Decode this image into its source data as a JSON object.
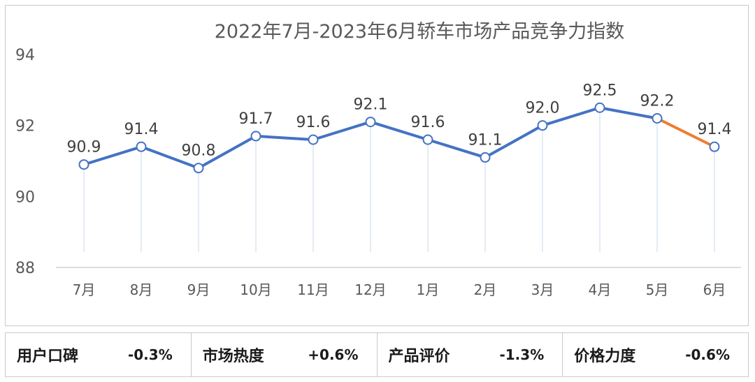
{
  "chart_data": {
    "type": "line",
    "title": "2022年7月-2023年6月轿车市场产品竞争力指数",
    "categories": [
      "7月",
      "8月",
      "9月",
      "10月",
      "11月",
      "12月",
      "1月",
      "2月",
      "3月",
      "4月",
      "5月",
      "6月"
    ],
    "values": [
      90.9,
      91.4,
      90.8,
      91.7,
      91.6,
      92.1,
      91.6,
      91.1,
      92.0,
      92.5,
      92.2,
      91.4
    ],
    "value_labels": [
      "90.9",
      "91.4",
      "90.8",
      "91.7",
      "91.6",
      "92.1",
      "91.6",
      "91.1",
      "92.0",
      "92.5",
      "92.2",
      "91.4"
    ],
    "yticks": [
      "94",
      "92",
      "90",
      "88"
    ],
    "ylim": [
      88,
      94
    ],
    "grid": false,
    "colors": {
      "line": "#4472c4",
      "last_segment": "#ed7d31",
      "marker_fill": "#ffffff",
      "drop_line": "#dce6f2"
    }
  },
  "metrics": [
    {
      "name": "用户口碑",
      "value": "-0.3%"
    },
    {
      "name": "市场热度",
      "value": "+0.6%"
    },
    {
      "name": "产品评价",
      "value": "-1.3%"
    },
    {
      "name": "价格力度",
      "value": "-0.6%"
    }
  ]
}
